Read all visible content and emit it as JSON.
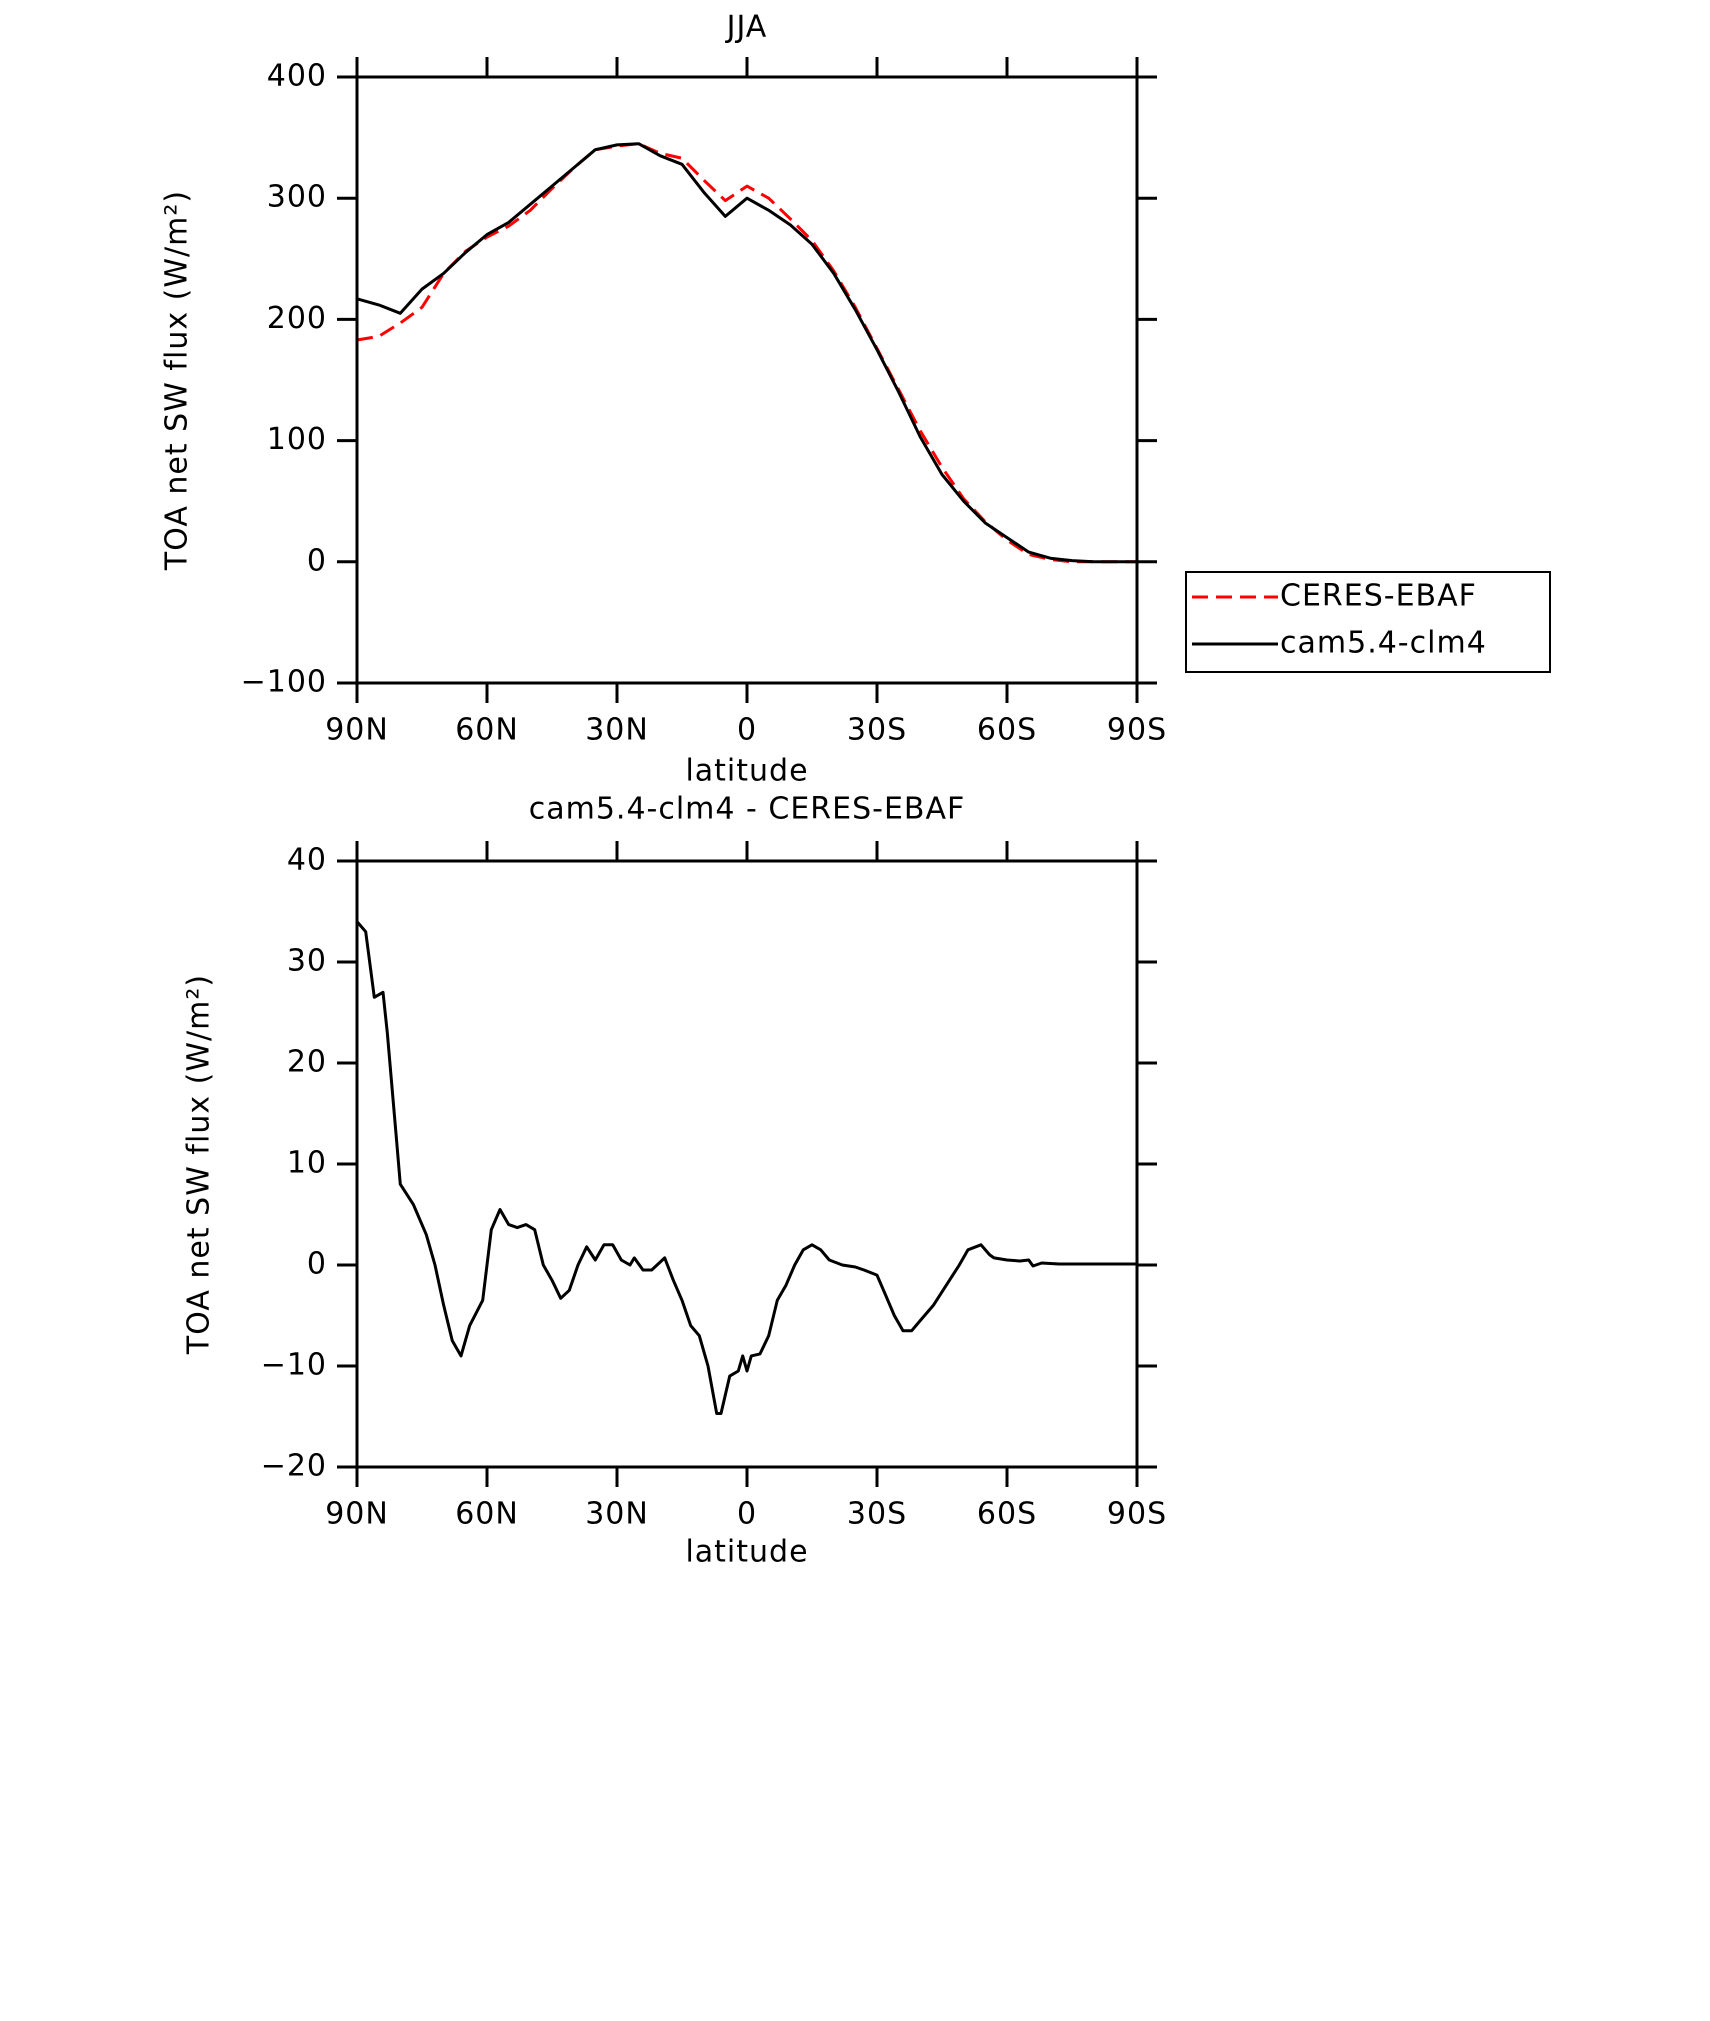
{
  "chart_data": [
    {
      "type": "line",
      "title": "JJA",
      "xlabel": "latitude",
      "ylabel": "TOA net SW flux (W/m²)",
      "xlim": [
        90,
        -90
      ],
      "xticks": [
        {
          "value": 90,
          "label": "90N"
        },
        {
          "value": 60,
          "label": "60N"
        },
        {
          "value": 30,
          "label": "30N"
        },
        0,
        {
          "value": -30,
          "label": "30S"
        },
        {
          "value": -60,
          "label": "60S"
        },
        {
          "value": -90,
          "label": "90S"
        }
      ],
      "ylim": [
        -100,
        400
      ],
      "yticks": [
        {
          "value": -100,
          "label": "−100"
        },
        0,
        100,
        200,
        300,
        400
      ],
      "x": [
        90,
        85,
        80,
        75,
        70,
        65,
        60,
        55,
        50,
        45,
        40,
        35,
        30,
        25,
        20,
        15,
        10,
        5,
        0,
        -5,
        -10,
        -15,
        -20,
        -25,
        -30,
        -35,
        -40,
        -45,
        -50,
        -55,
        -60,
        -65,
        -70,
        -75,
        -80,
        -85,
        -90
      ],
      "series": [
        {
          "name": "CERES-EBAF",
          "color": "#ff0000",
          "dash": true,
          "values": [
            183,
            186,
            197,
            210,
            238,
            256,
            268,
            277,
            290,
            308,
            325,
            340,
            343,
            345,
            337,
            333,
            315,
            298,
            310,
            300,
            283,
            265,
            240,
            210,
            176,
            142,
            108,
            78,
            52,
            33,
            18,
            6,
            2,
            0,
            0,
            0,
            0
          ]
        },
        {
          "name": "cam5.4-clm4",
          "color": "#000000",
          "dash": false,
          "values": [
            217,
            212,
            205,
            225,
            238,
            255,
            270,
            280,
            295,
            310,
            325,
            340,
            344,
            345,
            335,
            328,
            305,
            285,
            300,
            290,
            278,
            262,
            238,
            208,
            175,
            140,
            103,
            72,
            50,
            32,
            20,
            8,
            3,
            1,
            0,
            0,
            0
          ]
        }
      ],
      "legend": "right"
    },
    {
      "type": "line",
      "title": "cam5.4-clm4 - CERES-EBAF",
      "xlabel": "latitude",
      "ylabel": "TOA net SW flux (W/m²)",
      "xlim": [
        90,
        -90
      ],
      "xticks": [
        {
          "value": 90,
          "label": "90N"
        },
        {
          "value": 60,
          "label": "60N"
        },
        {
          "value": 30,
          "label": "30N"
        },
        0,
        {
          "value": -30,
          "label": "30S"
        },
        {
          "value": -60,
          "label": "60S"
        },
        {
          "value": -90,
          "label": "90S"
        }
      ],
      "ylim": [
        -20,
        40
      ],
      "yticks": [
        {
          "value": -20,
          "label": "−20"
        },
        {
          "value": -10,
          "label": "−10"
        },
        0,
        10,
        20,
        30,
        40
      ],
      "x": [
        90,
        88,
        86,
        84,
        83,
        81,
        80,
        77,
        74,
        72,
        70,
        68,
        66,
        64,
        61,
        59,
        57,
        55,
        53,
        51,
        49,
        47,
        45,
        43,
        41,
        39,
        37,
        35,
        33,
        31,
        29,
        27,
        26,
        24,
        22,
        19,
        17,
        15,
        13,
        11,
        9,
        7,
        6,
        4,
        2,
        1,
        0,
        -1,
        -3,
        -5,
        -7,
        -9,
        -11,
        -13,
        -15,
        -17,
        -19,
        -22,
        -25,
        -27,
        -30,
        -32,
        -34,
        -36,
        -38,
        -40,
        -43,
        -46,
        -49,
        -51,
        -54,
        -56,
        -57,
        -60,
        -63,
        -65,
        -66,
        -68,
        -72,
        -90
      ],
      "series": [
        {
          "color": "#000000",
          "dash": false,
          "values": [
            34,
            33,
            26.5,
            27,
            23,
            13,
            8,
            6,
            3,
            0,
            -4,
            -7.5,
            -9,
            -6,
            -3.5,
            3.5,
            5.5,
            4,
            3.7,
            4,
            3.5,
            0,
            -1.5,
            -3.3,
            -2.5,
            0,
            1.8,
            0.5,
            2,
            2,
            0.5,
            0,
            0.7,
            -0.5,
            -0.5,
            0.7,
            -1.5,
            -3.5,
            -6,
            -7,
            -10,
            -14.7,
            -14.7,
            -11,
            -10.5,
            -9,
            -10.5,
            -9,
            -8.8,
            -7,
            -3.5,
            -2,
            0,
            1.5,
            2,
            1.5,
            0.5,
            0,
            -0.2,
            -0.5,
            -1,
            -3,
            -5,
            -6.5,
            -6.5,
            -5.5,
            -4,
            -2,
            0,
            1.5,
            2,
            1,
            0.7,
            0.5,
            0.4,
            0.5,
            -0.1,
            0.2,
            0.1,
            0.1
          ]
        }
      ]
    }
  ]
}
